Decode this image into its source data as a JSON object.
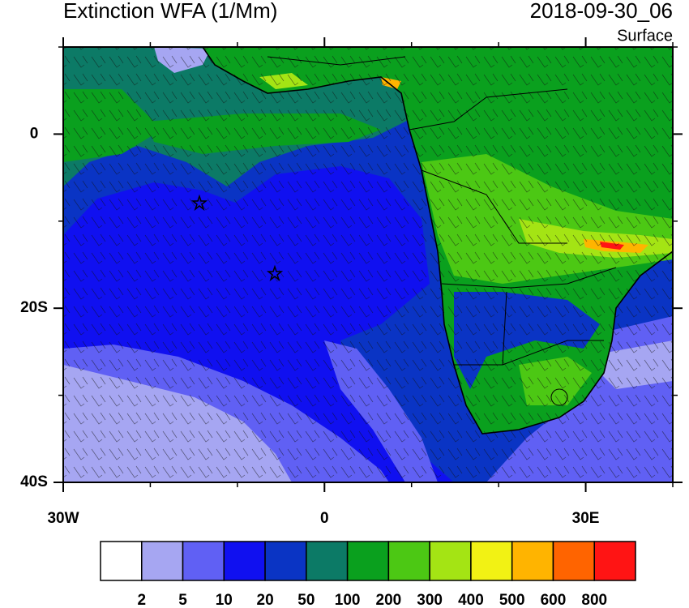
{
  "title": "Extinction WFA (1/Mm)",
  "datetime": "2018-09-30_06",
  "level": "Surface",
  "lon_range": [
    -30,
    40
  ],
  "lat_range": [
    -40,
    10
  ],
  "lon_ticks": [
    {
      "value": -30,
      "label": "30W"
    },
    0,
    {
      "value": 30,
      "label": "30E"
    }
  ],
  "lat_ticks": [
    0,
    {
      "value": -20,
      "label": "20S"
    },
    {
      "value": -40,
      "label": "40S"
    }
  ],
  "colorbar": {
    "colors": [
      "#ffffff",
      "#a6a6f2",
      "#6060f4",
      "#1010f0",
      "#0a34c4",
      "#0c7a66",
      "#0aa01e",
      "#4cc814",
      "#a4e414",
      "#f2f214",
      "#ffb400",
      "#ff6400",
      "#ff1414"
    ],
    "labels": [
      2,
      5,
      10,
      20,
      50,
      100,
      200,
      300,
      400,
      500,
      600,
      800
    ]
  }
}
